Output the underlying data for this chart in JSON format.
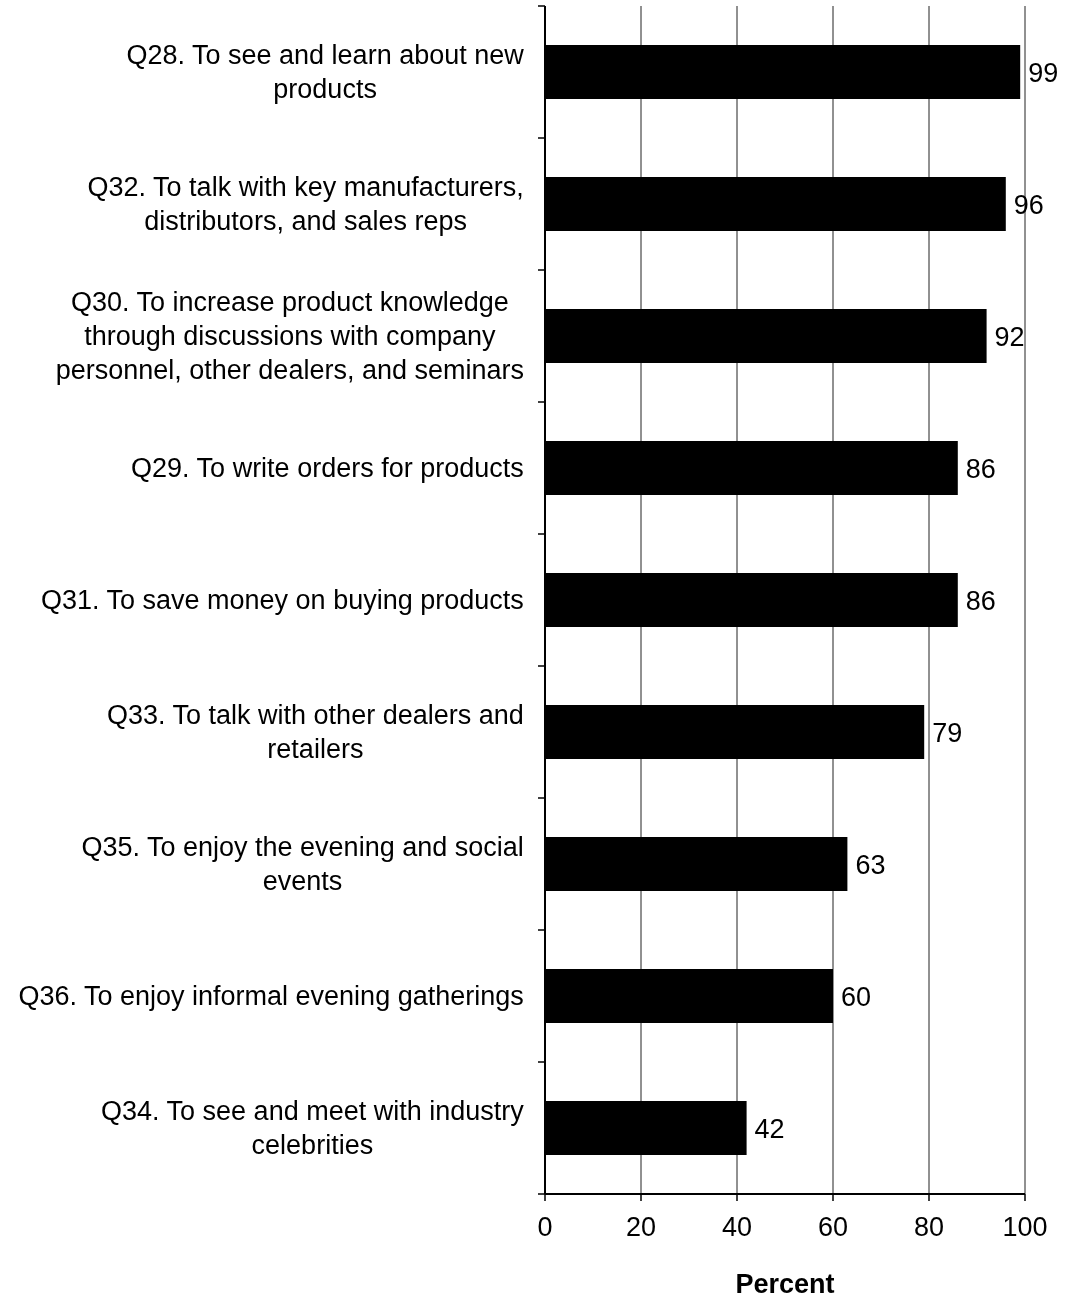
{
  "chart_data": {
    "type": "bar",
    "orientation": "horizontal",
    "categories": [
      "Q28. To see and learn about new\nproducts",
      "Q32. To talk with key manufacturers,\ndistributors, and sales reps",
      "Q30. To increase product knowledge\nthrough discussions with company\npersonnel, other dealers, and seminars",
      "Q29. To write orders for products",
      "Q31. To save money on buying products",
      "Q33. To talk with other dealers and\nretailers",
      "Q35. To enjoy the evening and social\nevents",
      "Q36. To enjoy informal evening gatherings",
      "Q34. To see and meet with industry\ncelebrities"
    ],
    "values": [
      99,
      96,
      92,
      86,
      86,
      79,
      63,
      60,
      42
    ],
    "color": "#000000",
    "xlabel": "Percent",
    "xlim": [
      0,
      100
    ],
    "xticks": [
      0,
      20,
      40,
      60,
      80,
      100
    ],
    "grid": "x",
    "data_labels": true
  }
}
